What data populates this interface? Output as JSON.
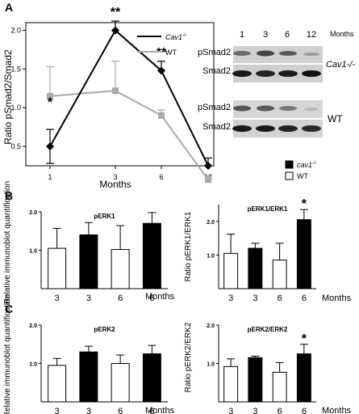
{
  "panel_labels": {
    "a": "A",
    "b": "B",
    "c": "C"
  },
  "panel_a": {
    "ylabel": "Ratio pSmad2/Smad2",
    "xlabel": "Months",
    "legend": {
      "cav": "Cav1",
      "cav_sup": "-/-",
      "wt": "WT"
    },
    "colors": {
      "cav": "#000000",
      "wt": "#aaaaaa"
    },
    "blot": {
      "months": [
        "1",
        "3",
        "6",
        "12"
      ],
      "months_label": "Months",
      "rows": [
        "pSmad2",
        "Smad2",
        "pSmad2",
        "Smad2"
      ],
      "group_cav": "Cav1-/-",
      "group_wt": "WT"
    }
  },
  "legend_bc": {
    "cav": "cav1",
    "cav_sup": "-/-",
    "wt": "WT"
  },
  "months_label": "Months",
  "chart_data": [
    {
      "type": "line",
      "x": [
        "1",
        "3",
        "6",
        "12"
      ],
      "ylabel": "Ratio pSmad2/Smad2",
      "xlabel": "Months",
      "ylim": [
        0.25,
        2.1
      ],
      "yticks": [
        "0.5",
        "1.0",
        "1.5",
        "2.0"
      ],
      "xticks": [
        "1",
        "3",
        "6",
        "12"
      ],
      "series": [
        {
          "name": "Cav1-/-",
          "values": [
            0.5,
            2.0,
            1.48,
            0.25
          ],
          "errors": [
            0.22,
            0.12,
            0.12,
            0.1
          ],
          "markers": [
            "*",
            "**",
            "**",
            ""
          ]
        },
        {
          "name": "WT",
          "values": [
            1.15,
            1.22,
            0.9,
            0.07
          ],
          "errors": [
            0.38,
            0.38,
            0.07,
            0.05
          ]
        }
      ]
    },
    {
      "type": "bar",
      "title": "pERK1",
      "ylabel": "Relative immunoblot quantification",
      "categories": [
        "3",
        "3",
        "6",
        "6"
      ],
      "values": [
        1.05,
        1.4,
        1.02,
        1.7
      ],
      "errors": [
        0.52,
        0.32,
        0.62,
        0.28
      ],
      "fills": [
        "white",
        "black",
        "white",
        "black"
      ],
      "stars": [
        "",
        "",
        "",
        ""
      ],
      "ylim": [
        0,
        2.0
      ],
      "yticks": [
        "1.0",
        "2.0"
      ]
    },
    {
      "type": "bar",
      "title": "pERK1/ERK1",
      "ylabel": "Ratio pERK1/ERK1",
      "categories": [
        "3",
        "3",
        "6",
        "6"
      ],
      "values": [
        1.05,
        1.2,
        0.85,
        2.05
      ],
      "errors": [
        0.57,
        0.15,
        0.5,
        0.3
      ],
      "fills": [
        "white",
        "black",
        "white",
        "black"
      ],
      "stars": [
        "",
        "",
        "",
        "*"
      ],
      "ylim": [
        0,
        2.5
      ],
      "yticks": [
        "1.0",
        "2.0"
      ]
    },
    {
      "type": "bar",
      "title": "pERK2",
      "ylabel": "Relative immunoblot quantification",
      "categories": [
        "3",
        "3",
        "6",
        "6"
      ],
      "values": [
        0.95,
        1.3,
        1.0,
        1.25
      ],
      "errors": [
        0.18,
        0.15,
        0.22,
        0.22
      ],
      "fills": [
        "white",
        "black",
        "white",
        "black"
      ],
      "stars": [
        "",
        "",
        "",
        ""
      ],
      "ylim": [
        0,
        2.0
      ],
      "yticks": [
        "1.0",
        "2.0"
      ]
    },
    {
      "type": "bar",
      "title": "pERK2/ERK2",
      "ylabel": "Ratio pERK2/ERK2",
      "categories": [
        "3",
        "3",
        "6",
        "6"
      ],
      "values": [
        0.92,
        1.15,
        0.77,
        1.25
      ],
      "errors": [
        0.2,
        0.04,
        0.25,
        0.25
      ],
      "fills": [
        "white",
        "black",
        "white",
        "black"
      ],
      "stars": [
        "",
        "",
        "",
        "*"
      ],
      "ylim": [
        0,
        2.0
      ],
      "yticks": [
        "1.0",
        "2.0"
      ]
    }
  ]
}
